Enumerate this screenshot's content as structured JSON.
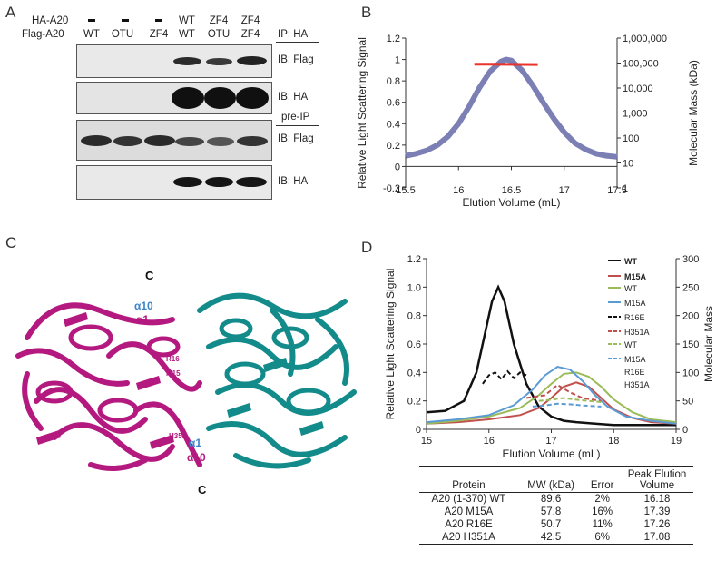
{
  "panelA": {
    "label": "A",
    "row_labels": [
      "HA-A20",
      "Flag-A20"
    ],
    "ha_row": [
      "-",
      "-",
      "-",
      "WT",
      "ZF4",
      "ZF4"
    ],
    "flag_row": [
      "WT",
      "OTU",
      "ZF4",
      "WT",
      "OTU",
      "ZF4"
    ],
    "ip_label": "IP: HA",
    "preip_label": "pre-IP",
    "blots": [
      {
        "label": "IB: Flag"
      },
      {
        "label": "IB: HA"
      },
      {
        "label": "IB: Flag"
      },
      {
        "label": "IB: HA"
      }
    ]
  },
  "panelB": {
    "label": "B",
    "ylabel": "Relative Light Scattering Signal",
    "xlabel": "Elution Volume (mL)",
    "y2label": "Molecular Mass (kDa)",
    "xticks": [
      "15.5",
      "16",
      "16.5",
      "17",
      "17.5"
    ],
    "yticks": [
      "-0.2",
      "0",
      "0.2",
      "0.4",
      "0.6",
      "0.8",
      "1",
      "1.2"
    ],
    "y2ticks": [
      "1",
      "10",
      "100",
      "1,000",
      "10,000",
      "100,000",
      "1,000,000"
    ]
  },
  "panelC": {
    "label": "C",
    "annotations": [
      "C",
      "α10",
      "α1",
      "R16",
      "M15",
      "H351",
      "α1",
      "α10",
      "C"
    ]
  },
  "panelD": {
    "label": "D",
    "ylabel": "Relative Light Scattering Signal",
    "xlabel": "Elution Volume (mL)",
    "y2label": "Molecular Mass",
    "xticks": [
      "15",
      "16",
      "17",
      "18",
      "19"
    ],
    "yticks": [
      "0",
      "0.2",
      "0.4",
      "0.6",
      "0.8",
      "1.0",
      "1.2"
    ],
    "y2ticks": [
      "0",
      "50",
      "100",
      "150",
      "200",
      "250",
      "300"
    ],
    "legend": [
      "WT",
      "M15A",
      "WT",
      "M15A",
      "R16E",
      "H351A",
      "WT",
      "M15A",
      "R16E",
      "H351A"
    ],
    "table": {
      "headers": [
        "Protein",
        "MW (kDa)",
        "Error",
        "Peak Elution Volume"
      ],
      "rows": [
        [
          "A20 (1-370) WT",
          "89.6",
          "2%",
          "16.18"
        ],
        [
          "A20 M15A",
          "57.8",
          "16%",
          "17.39"
        ],
        [
          "A20 R16E",
          "50.7",
          "11%",
          "17.26"
        ],
        [
          "A20 H351A",
          "42.5",
          "6%",
          "17.08"
        ]
      ]
    }
  },
  "chart_data": [
    {
      "type": "line",
      "panel": "B",
      "xlabel": "Elution Volume (mL)",
      "ylabel": "Relative Light Scattering Signal",
      "y2label": "Molecular Mass (kDa)",
      "xlim": [
        15.5,
        17.5
      ],
      "ylim": [
        -0.2,
        1.2
      ],
      "y2scale": "log",
      "y2lim": [
        1,
        1000000
      ],
      "grid": false,
      "series": [
        {
          "x": [
            15.5,
            15.6,
            15.7,
            15.8,
            15.9,
            16.0,
            16.1,
            16.2,
            16.3,
            16.4,
            16.45,
            16.5,
            16.6,
            16.7,
            16.8,
            16.9,
            17.0,
            17.1,
            17.2,
            17.3,
            17.4,
            17.5
          ],
          "y": [
            0.1,
            0.12,
            0.15,
            0.2,
            0.28,
            0.4,
            0.56,
            0.74,
            0.89,
            0.98,
            1.0,
            0.99,
            0.9,
            0.76,
            0.6,
            0.45,
            0.32,
            0.22,
            0.16,
            0.12,
            0.1,
            0.09
          ],
          "axis": "left",
          "color": "#7b7fb4"
        },
        {
          "x": [
            16.15,
            16.3,
            16.45,
            16.6,
            16.75
          ],
          "y": [
            90000,
            90000,
            89000,
            88000,
            87000
          ],
          "axis": "right",
          "color": "#e8342a"
        }
      ]
    },
    {
      "type": "line",
      "panel": "D",
      "xlabel": "Elution Volume (mL)",
      "ylabel": "Relative Light Scattering Signal",
      "y2label": "Molecular Mass",
      "xlim": [
        15,
        19
      ],
      "ylim": [
        0,
        1.2
      ],
      "y2lim": [
        0,
        300
      ],
      "grid": false,
      "series": [
        {
          "name": "WT",
          "axis": "left",
          "color": "#111111",
          "dash": false,
          "x": [
            15.0,
            15.3,
            15.6,
            15.8,
            15.95,
            16.05,
            16.15,
            16.25,
            16.4,
            16.6,
            16.8,
            17.0,
            17.2,
            17.4,
            17.7,
            18.0,
            18.5,
            19.0
          ],
          "y": [
            0.12,
            0.13,
            0.2,
            0.4,
            0.7,
            0.9,
            1.0,
            0.9,
            0.6,
            0.32,
            0.16,
            0.09,
            0.06,
            0.05,
            0.04,
            0.03,
            0.03,
            0.03
          ]
        },
        {
          "name": "M15A",
          "axis": "left",
          "color": "#c0504d",
          "dash": false,
          "x": [
            15.0,
            15.5,
            16.0,
            16.5,
            16.8,
            17.0,
            17.2,
            17.4,
            17.6,
            17.8,
            18.0,
            18.3,
            18.6,
            19.0
          ],
          "y": [
            0.04,
            0.05,
            0.07,
            0.1,
            0.15,
            0.22,
            0.3,
            0.33,
            0.3,
            0.22,
            0.14,
            0.08,
            0.05,
            0.04
          ]
        },
        {
          "name": "WT",
          "axis": "left",
          "color": "#9bbb59",
          "dash": false,
          "x": [
            15.0,
            15.5,
            16.0,
            16.5,
            16.8,
            17.0,
            17.2,
            17.4,
            17.6,
            17.8,
            18.0,
            18.3,
            18.6,
            19.0
          ],
          "y": [
            0.04,
            0.06,
            0.09,
            0.15,
            0.24,
            0.32,
            0.39,
            0.4,
            0.37,
            0.3,
            0.21,
            0.12,
            0.07,
            0.05
          ]
        },
        {
          "name": "M15A",
          "axis": "left",
          "color": "#5b9bd5",
          "dash": false,
          "x": [
            15.0,
            15.5,
            16.0,
            16.4,
            16.7,
            16.9,
            17.1,
            17.3,
            17.5,
            17.7,
            17.9,
            18.2,
            18.6,
            19.0
          ],
          "y": [
            0.05,
            0.07,
            0.1,
            0.17,
            0.28,
            0.38,
            0.44,
            0.42,
            0.34,
            0.24,
            0.16,
            0.09,
            0.06,
            0.04
          ]
        },
        {
          "name": "R16E",
          "axis": "right",
          "color": "#111111",
          "dash": true,
          "x": [
            15.9,
            16.0,
            16.1,
            16.2,
            16.3,
            16.4,
            16.5,
            16.6
          ],
          "y": [
            80,
            95,
            100,
            88,
            102,
            90,
            100,
            95
          ]
        },
        {
          "name": "H351A",
          "axis": "right",
          "color": "#c0504d",
          "dash": true,
          "x": [
            16.6,
            16.9,
            17.1,
            17.3,
            17.5,
            17.8
          ],
          "y": [
            55,
            60,
            78,
            65,
            55,
            50
          ]
        },
        {
          "name": "WT",
          "axis": "right",
          "color": "#9bbb59",
          "dash": true,
          "x": [
            16.8,
            17.0,
            17.2,
            17.4,
            17.6,
            17.8
          ],
          "y": [
            50,
            52,
            55,
            52,
            50,
            48
          ]
        },
        {
          "name": "M15A R16E H351A",
          "axis": "right",
          "color": "#5b9bd5",
          "dash": true,
          "x": [
            16.7,
            16.9,
            17.1,
            17.3,
            17.5,
            17.8
          ],
          "y": [
            40,
            42,
            45,
            44,
            42,
            40
          ]
        }
      ]
    }
  ]
}
